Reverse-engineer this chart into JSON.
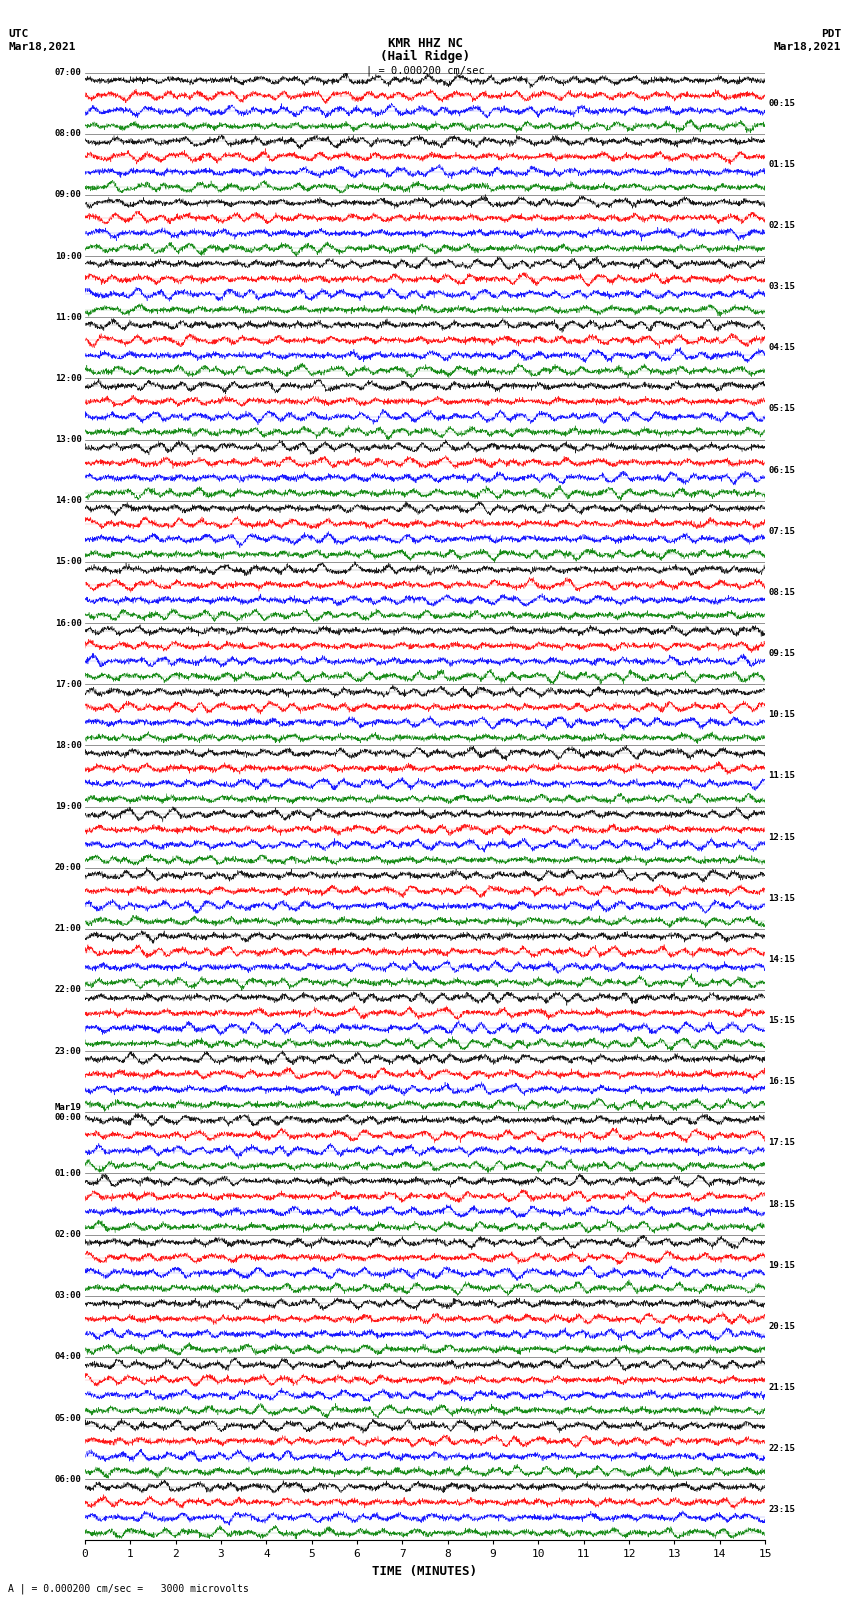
{
  "title_line1": "KMR HHZ NC",
  "title_line2": "(Hail Ridge)",
  "scale_label": "| = 0.000200 cm/sec",
  "utc_label": "UTC",
  "utc_date": "Mar18,2021",
  "pdt_label": "PDT",
  "pdt_date": "Mar18,2021",
  "footer_label": "A | = 0.000200 cm/sec =   3000 microvolts",
  "xlabel": "TIME (MINUTES)",
  "left_times": [
    "07:00",
    "08:00",
    "09:00",
    "10:00",
    "11:00",
    "12:00",
    "13:00",
    "14:00",
    "15:00",
    "16:00",
    "17:00",
    "18:00",
    "19:00",
    "20:00",
    "21:00",
    "22:00",
    "23:00",
    "Mar19\n00:00",
    "01:00",
    "02:00",
    "03:00",
    "04:00",
    "05:00",
    "06:00"
  ],
  "right_times": [
    "00:15",
    "01:15",
    "02:15",
    "03:15",
    "04:15",
    "05:15",
    "06:15",
    "07:15",
    "08:15",
    "09:15",
    "10:15",
    "11:15",
    "12:15",
    "13:15",
    "14:15",
    "15:15",
    "16:15",
    "17:15",
    "18:15",
    "19:15",
    "20:15",
    "21:15",
    "22:15",
    "23:15"
  ],
  "n_rows": 24,
  "traces_per_row": 4,
  "colors": [
    "black",
    "red",
    "blue",
    "green"
  ],
  "fig_width": 8.5,
  "fig_height": 16.13,
  "dpi": 100,
  "xlim": [
    0,
    15
  ],
  "xticks": [
    0,
    1,
    2,
    3,
    4,
    5,
    6,
    7,
    8,
    9,
    10,
    11,
    12,
    13,
    14,
    15
  ],
  "background_color": "white",
  "trace_amplitude": 0.28,
  "noise_amplitude": 0.08,
  "freq_base": 25.0,
  "seed": 42
}
